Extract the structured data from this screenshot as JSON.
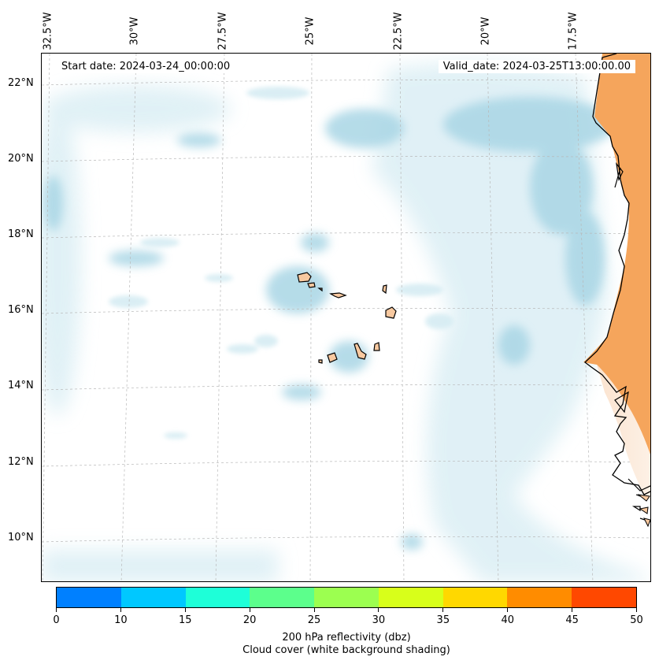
{
  "map": {
    "start_label": "Start date: 2024-03-24_00:00:00",
    "valid_label": "Valid_date: 2024-03-25T13:00:00.00",
    "lon_labels": [
      "32.5°W",
      "30°W",
      "27.5°W",
      "25°W",
      "22.5°W",
      "20°W",
      "17.5°W"
    ],
    "lat_labels": [
      "22°N",
      "20°N",
      "18°N",
      "16°N",
      "14°N",
      "12°N",
      "10°N"
    ],
    "colors": {
      "land": "#f5a55c",
      "land_light": "#f8c9a0",
      "cloud": "#a9d6e5",
      "cloud_light": "#d6ecf3",
      "grid": "#b8b8b8",
      "coast": "#000000"
    }
  },
  "colorbar": {
    "title": "200 hPa reflectivity (dbz)",
    "subtitle": "Cloud cover (white background shading)",
    "ticks": [
      "0",
      "10",
      "15",
      "20",
      "25",
      "30",
      "35",
      "40",
      "45",
      "50"
    ],
    "colors": [
      "#0080ff",
      "#00c8ff",
      "#1effd8",
      "#5cff8c",
      "#9cff50",
      "#d8ff1a",
      "#ffd800",
      "#ff8c00",
      "#ff4800"
    ]
  }
}
